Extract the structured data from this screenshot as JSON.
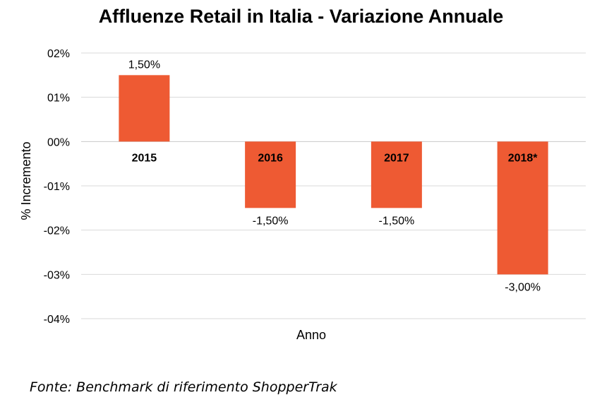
{
  "chart_data": {
    "type": "bar",
    "title": "Affluenze Retail in Italia - Variazione Annuale",
    "xlabel": "Anno",
    "ylabel": "% Incremento",
    "categories": [
      "2015",
      "2016",
      "2017",
      "2018*"
    ],
    "values": [
      1.5,
      -1.5,
      -1.5,
      -3.0
    ],
    "data_labels": [
      "1,50%",
      "-1,50%",
      "-1,50%",
      "-3,00%"
    ],
    "ylim": [
      -4,
      2
    ],
    "yticks": [
      2,
      1,
      0,
      -1,
      -2,
      -3,
      -4
    ],
    "ytick_labels": [
      "02%",
      "01%",
      "00%",
      "-01%",
      "-02%",
      "-03%",
      "-04%"
    ],
    "grid": true,
    "legend": "none",
    "bar_color": "#EE5A33"
  },
  "source_note": "Fonte: Benchmark di riferimento ShopperTrak"
}
